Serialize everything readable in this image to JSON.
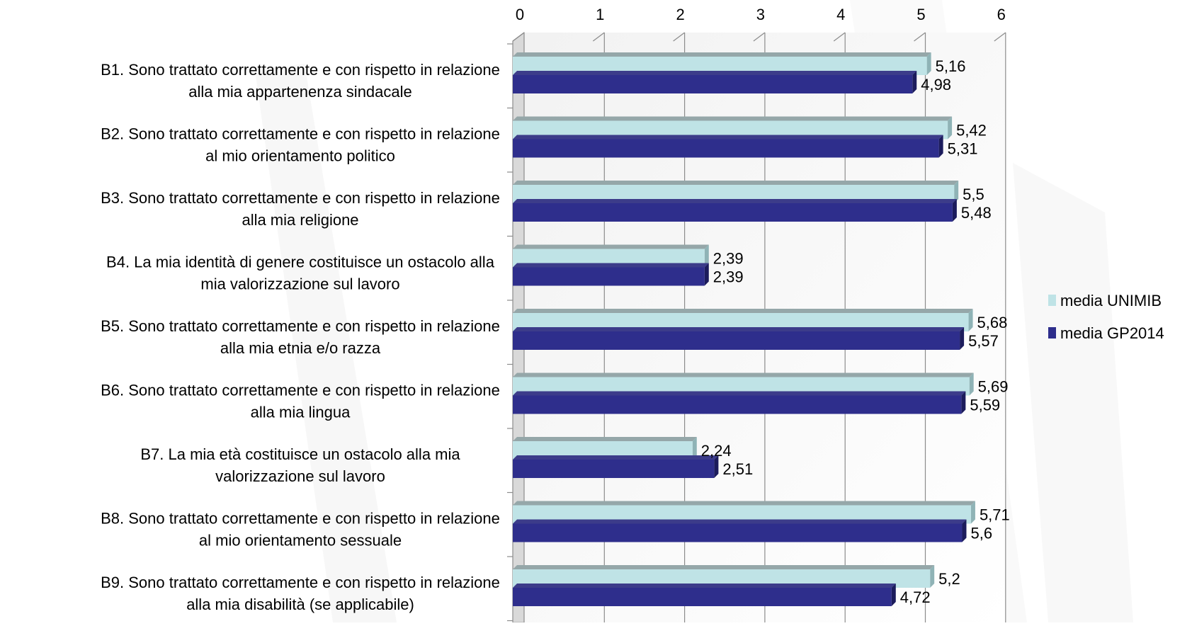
{
  "chart_data": {
    "type": "bar",
    "orientation": "horizontal",
    "style": "3d",
    "title": "",
    "xlabel": "",
    "ylabel": "",
    "xlim": [
      0,
      6
    ],
    "ticks": [
      "0",
      "1",
      "2",
      "3",
      "4",
      "5",
      "6"
    ],
    "grid": true,
    "legend_position": "right",
    "categories": [
      "B1. Sono trattato correttamente e con rispetto in relazione alla mia appartenenza sindacale",
      "B2. Sono trattato correttamente e con rispetto in relazione al mio orientamento politico",
      "B3. Sono trattato correttamente e con rispetto in relazione alla mia religione",
      "B4. La mia identità di genere costituisce un ostacolo alla mia valorizzazione sul lavoro",
      "B5. Sono trattato correttamente e con rispetto in relazione alla mia etnia e/o razza",
      "B6. Sono trattato correttamente e con rispetto in relazione alla mia lingua",
      "B7. La mia età costituisce un ostacolo alla mia valorizzazione sul lavoro",
      "B8. Sono trattato correttamente e con rispetto in relazione al mio orientamento sessuale",
      "B9. Sono trattato correttamente e con rispetto in relazione alla mia disabilità (se applicabile)"
    ],
    "category_lines": [
      [
        "B1. Sono trattato correttamente e con rispetto in relazione",
        "alla mia appartenenza sindacale"
      ],
      [
        "B2. Sono trattato correttamente e con rispetto in relazione",
        "al mio orientamento politico"
      ],
      [
        "B3. Sono trattato correttamente e con rispetto in relazione",
        "alla mia religione"
      ],
      [
        "B4. La mia identità di genere costituisce un ostacolo alla",
        "mia valorizzazione sul lavoro"
      ],
      [
        "B5. Sono trattato correttamente e con rispetto in relazione",
        "alla mia etnia e/o razza"
      ],
      [
        "B6. Sono trattato correttamente e con rispetto in relazione",
        "alla mia lingua"
      ],
      [
        "B7. La mia età costituisce un ostacolo alla mia",
        "valorizzazione sul lavoro"
      ],
      [
        "B8. Sono trattato correttamente e con rispetto in relazione",
        "al mio orientamento sessuale"
      ],
      [
        "B9. Sono trattato correttamente e con rispetto in relazione",
        "alla mia disabilità (se applicabile)"
      ]
    ],
    "series": [
      {
        "name": "media UNIMIB",
        "color": "#bfe3e6",
        "values": [
          5.16,
          5.42,
          5.5,
          2.39,
          5.68,
          5.69,
          2.24,
          5.71,
          5.2
        ],
        "labels": [
          "5,16",
          "5,42",
          "5,5",
          "2,39",
          "5,68",
          "5,69",
          "2,24",
          "5,71",
          "5,2"
        ]
      },
      {
        "name": "media GP2014",
        "color": "#2e2e8c",
        "values": [
          4.98,
          5.31,
          5.48,
          2.39,
          5.57,
          5.59,
          2.51,
          5.6,
          4.72
        ],
        "labels": [
          "4,98",
          "5,31",
          "5,48",
          "2,39",
          "5,57",
          "5,59",
          "2,51",
          "5,6",
          "4,72"
        ]
      }
    ]
  }
}
